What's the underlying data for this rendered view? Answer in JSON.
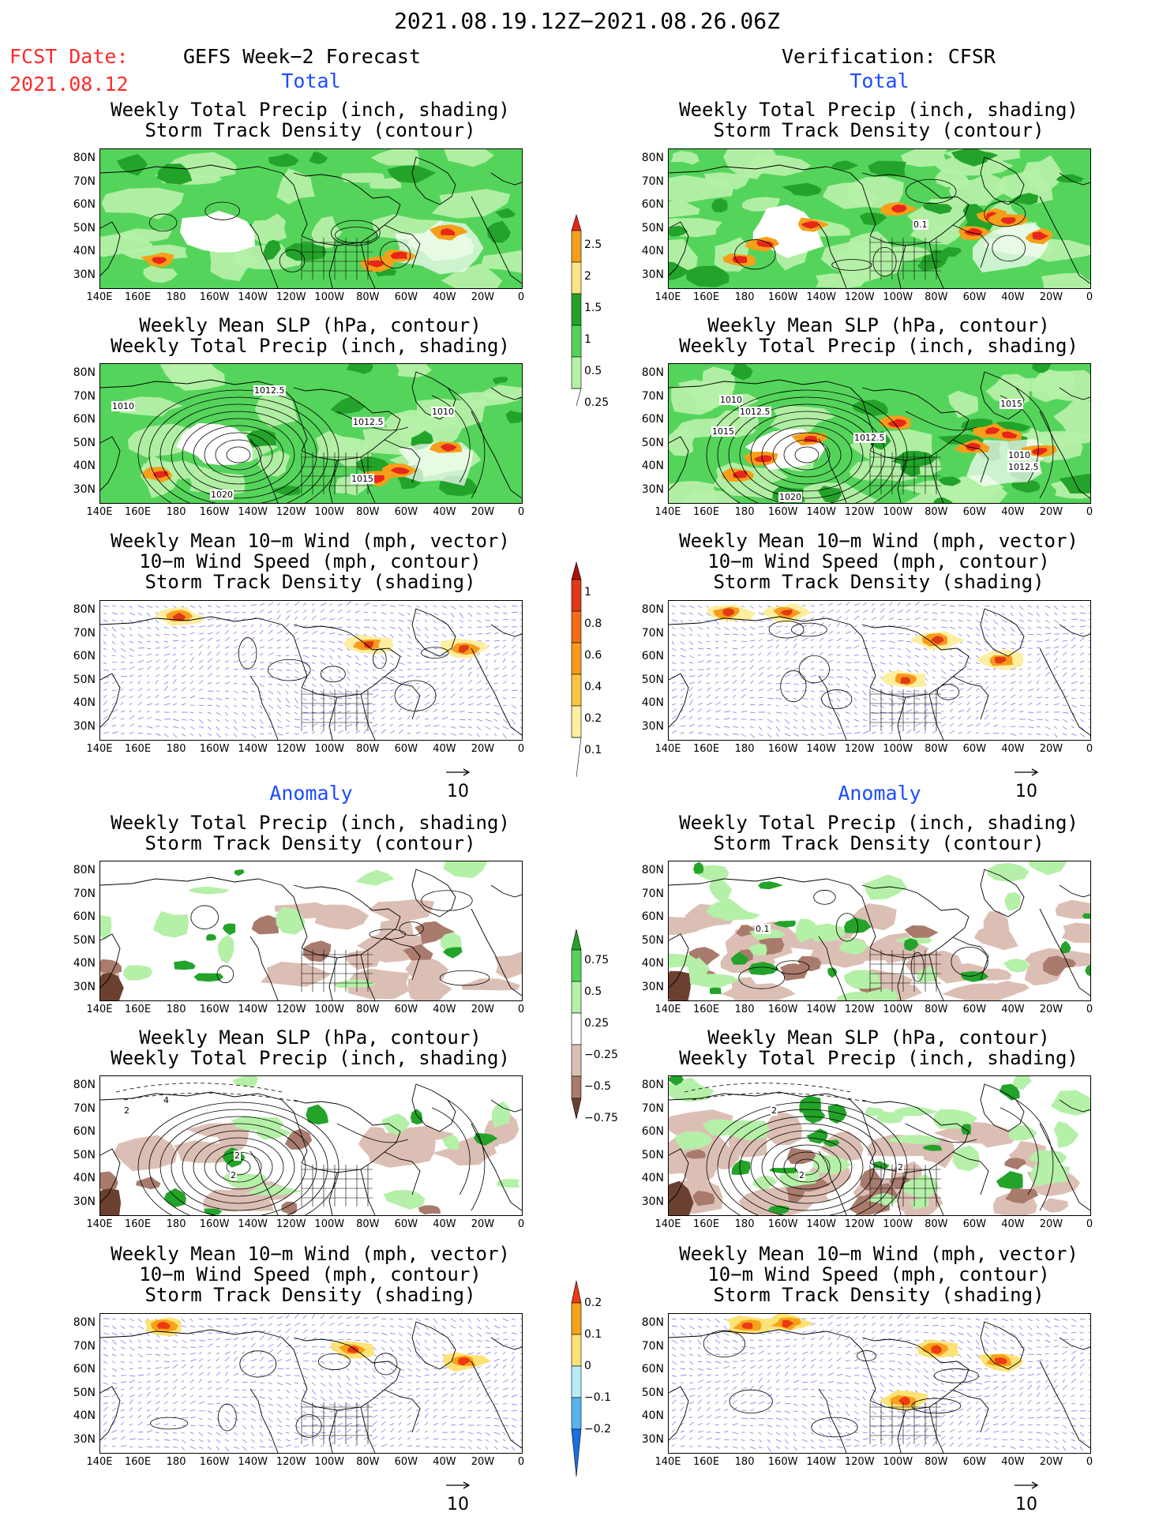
{
  "header": {
    "period": "2021.08.19.12Z−2021.08.26.06Z",
    "fcst_label": "FCST Date:",
    "fcst_date": "2021.08.12",
    "left_model": "GEFS Week−2 Forecast",
    "right_model": "Verification: CFSR"
  },
  "sections": {
    "total": "Total",
    "anomaly": "Anomaly"
  },
  "panel_titles": {
    "precip_storm": [
      "Weekly Total Precip (inch, shading)",
      "Storm Track Density (contour)"
    ],
    "slp_precip": [
      "Weekly Mean SLP (hPa, contour)",
      "Weekly Total Precip (inch, shading)"
    ],
    "wind_storm": [
      "Weekly Mean 10−m Wind (mph, vector)",
      "10−m Wind Speed (mph, contour)",
      "Storm Track Density (shading)"
    ]
  },
  "axes": {
    "lat_labels": [
      "80N",
      "70N",
      "60N",
      "50N",
      "40N",
      "30N"
    ],
    "lon_labels": [
      "140E",
      "160E",
      "180",
      "160W",
      "140W",
      "120W",
      "100W",
      "80W",
      "60W",
      "40W",
      "20W",
      "0"
    ]
  },
  "vector_ref": "10",
  "colorbars": {
    "total_precip": {
      "labels": [
        "2.5",
        "2",
        "1.5",
        "1",
        "0.5",
        "0.25"
      ],
      "colors": [
        "#e8261c",
        "#f59f1a",
        "#fbe488",
        "#23a32a",
        "#55d45b",
        "#b5f0a8"
      ]
    },
    "storm_density": {
      "labels": [
        "1",
        "0.8",
        "0.6",
        "0.4",
        "0.2",
        "0.1"
      ],
      "colors": [
        "#a8140c",
        "#e03a15",
        "#f56b16",
        "#f99a1b",
        "#fcc53f",
        "#fdeea0"
      ]
    },
    "anom_precip": {
      "labels": [
        "0.75",
        "0.5",
        "0.25",
        "−0.25",
        "−0.5",
        "−0.75"
      ],
      "colors": [
        "#23a32a",
        "#55d45b",
        "#b5f0a8",
        "#ffffff",
        "#dcbfb4",
        "#a87b6d",
        "#6b4030"
      ]
    },
    "anom_storm": {
      "labels": [
        "0.2",
        "0.1",
        "0",
        "−0.1",
        "−0.2"
      ],
      "colors": [
        "#ee3a12",
        "#f7a21b",
        "#fce277",
        "#b6ecf8",
        "#56b5ee",
        "#1a6fe0"
      ]
    }
  },
  "contour_labels": {
    "gefs_slp_total": [
      "1010",
      "1012.5",
      "1012.5",
      "1010",
      "1015",
      "1020"
    ],
    "cfsr_slp_total": [
      "1010",
      "1012.5",
      "1015",
      "1012.5",
      "1015",
      "1010",
      "1012.5",
      "1020"
    ],
    "cfsr_precip_total": [
      "0.1"
    ],
    "cfsr_precip_anom": [
      "0.1"
    ],
    "gefs_slp_anom": [
      "2",
      "4",
      "2",
      "2"
    ],
    "cfsr_slp_anom": [
      "2",
      "2",
      "2"
    ]
  }
}
